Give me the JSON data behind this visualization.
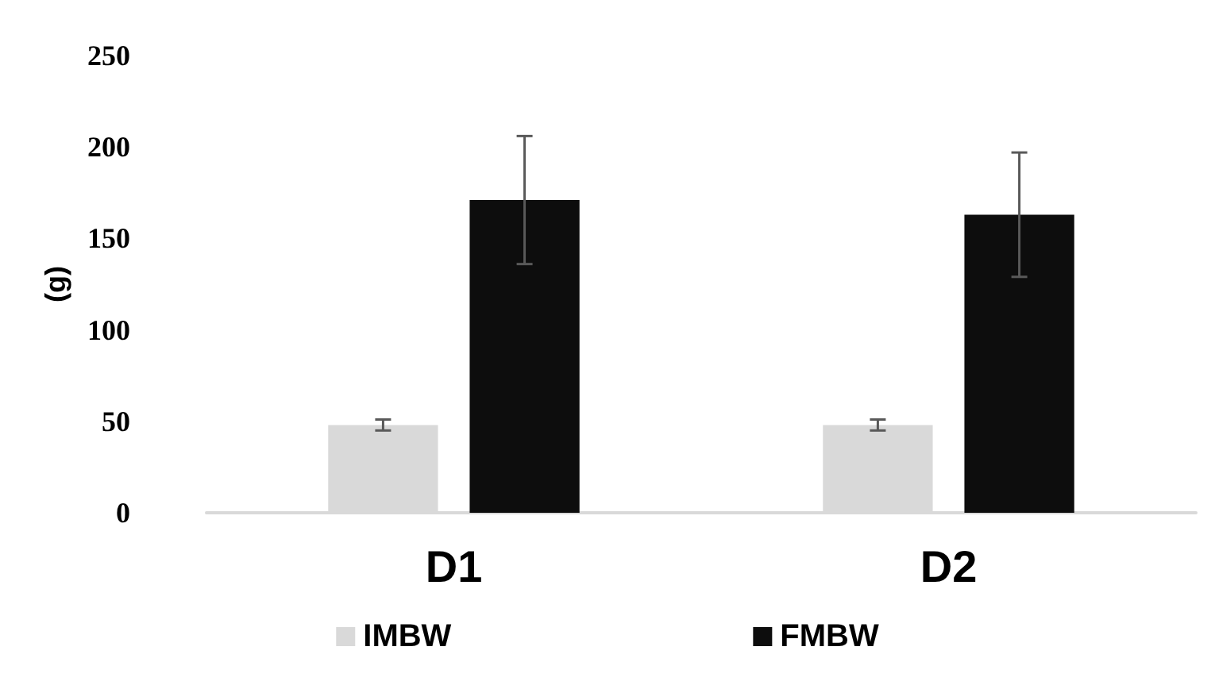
{
  "chart_data": {
    "type": "bar",
    "ylabel": "(g)",
    "categories": [
      "D1",
      "D2"
    ],
    "series": [
      {
        "name": "IMBW",
        "color": "#d9d9d9",
        "values": [
          48,
          48
        ],
        "errors": [
          3,
          3
        ]
      },
      {
        "name": "FMBW",
        "color": "#0d0d0d",
        "values": [
          171,
          163
        ],
        "errors": [
          35,
          34
        ]
      }
    ],
    "ylim": [
      0,
      250
    ],
    "yticks": [
      0,
      50,
      100,
      150,
      200,
      250
    ],
    "grid": false,
    "legend": "bottom"
  }
}
